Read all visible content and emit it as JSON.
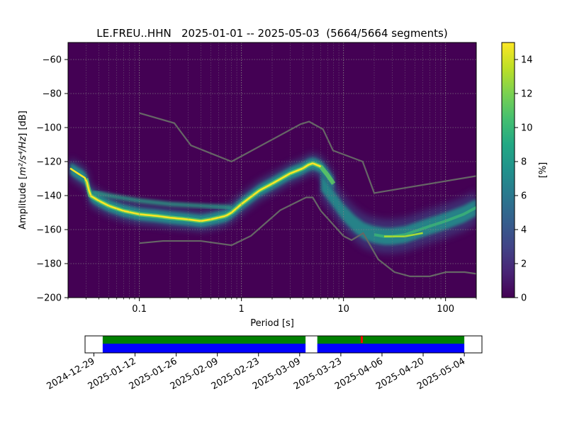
{
  "chart_data": [
    {
      "type": "heatmap",
      "title": "LE.FREU..HHN   2025-01-01 -- 2025-05-03  (5664/5664 segments)",
      "xlabel": "Period [s]",
      "ylabel_main": "Amplitude [",
      "ylabel_unit": "m²/s⁴/Hz",
      "ylabel_end": "] [dB]",
      "xscale": "log",
      "xlim": [
        0.02,
        200
      ],
      "ylim": [
        -200,
        -50
      ],
      "xticks": [
        0.1,
        1,
        10,
        100
      ],
      "xtick_labels": [
        "0.1",
        "1",
        "10",
        "100"
      ],
      "yticks": [
        -60,
        -80,
        -100,
        -120,
        -140,
        -160,
        -180,
        -200
      ],
      "grid": true,
      "colorbar": {
        "label": "[%]",
        "min": 0,
        "max": 15,
        "ticks": [
          0,
          2,
          4,
          6,
          8,
          10,
          12,
          14
        ],
        "colormap": "viridis"
      },
      "ppsd_mode_curve": {
        "period": [
          0.021,
          0.025,
          0.03,
          0.033,
          0.04,
          0.05,
          0.07,
          0.1,
          0.15,
          0.2,
          0.3,
          0.4,
          0.5,
          0.7,
          0.8,
          1,
          1.5,
          2,
          3,
          4,
          4.5,
          5,
          6,
          7,
          8
        ],
        "amplitude_db": [
          -124,
          -127,
          -130,
          -140,
          -143,
          -146,
          -149,
          -151,
          -152,
          -153,
          -154,
          -155,
          -154,
          -152,
          -150,
          -145,
          -137,
          -133,
          -127,
          -124,
          -122,
          -121,
          -123,
          -128,
          -133
        ]
      },
      "ppsd_secondary_band": {
        "period": [
          6,
          8,
          10,
          13,
          16,
          20,
          25,
          30,
          40,
          50,
          70,
          100,
          150,
          200
        ],
        "amplitude_db": [
          -132,
          -142,
          -150,
          -157,
          -161,
          -163,
          -164,
          -164,
          -163,
          -161,
          -158,
          -155,
          -151,
          -147
        ]
      },
      "nhnm": {
        "period": [
          0.1,
          0.22,
          0.32,
          0.8,
          3.8,
          4.6,
          6.3,
          7.9,
          15.4,
          20,
          354.8
        ],
        "amplitude_db": [
          -91.5,
          -97.4,
          -110.5,
          -120,
          -98,
          -96.5,
          -101,
          -113.5,
          -120,
          -138.5,
          -126
        ]
      },
      "nlnm": {
        "period": [
          0.1,
          0.17,
          0.4,
          0.8,
          1.24,
          2.4,
          4.3,
          5,
          6,
          10,
          12,
          15.6,
          21.9,
          31.6,
          45,
          70,
          101,
          154,
          200
        ],
        "amplitude_db": [
          -168,
          -166.7,
          -166.7,
          -169.2,
          -163.7,
          -148.6,
          -141.1,
          -141.1,
          -149,
          -163.8,
          -166.2,
          -162.1,
          -177.5,
          -185,
          -187.5,
          -187.5,
          -185,
          -185,
          -186
        ]
      }
    },
    {
      "type": "timeline",
      "xtick_labels": [
        "2024-12-29",
        "2025-01-12",
        "2025-01-26",
        "2025-02-09",
        "2025-02-23",
        "2025-03-09",
        "2025-03-23",
        "2025-04-06",
        "2025-04-20",
        "2025-05-04"
      ],
      "xlim": [
        "2024-12-26",
        "2025-05-10"
      ],
      "data_coverage": [
        [
          "2025-01-01",
          "2025-03-11"
        ],
        [
          "2025-03-15",
          "2025-05-04"
        ]
      ],
      "gaps": [
        "2025-03-30"
      ],
      "colors": {
        "coverage": "#0000ff",
        "used": "#008000",
        "gap": "#ff0000"
      }
    }
  ],
  "colors": {
    "noise_model": "#666666",
    "grid": "#888888",
    "background": "#440154"
  }
}
